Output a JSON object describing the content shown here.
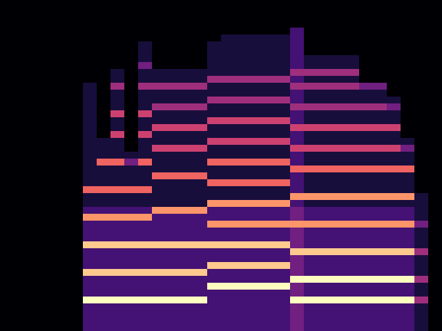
{
  "chart_data": {
    "type": "heatmap",
    "xlim": [
      -0.5,
      31.5
    ],
    "ylim": [
      47.5,
      -0.5
    ],
    "zlim": [
      0,
      9
    ],
    "tick_labels": false,
    "grid": false,
    "cells": [
      [
        0,
        0,
        0,
        0,
        0,
        0,
        0,
        0,
        0,
        0,
        0,
        0,
        0,
        0,
        0,
        0,
        0,
        0,
        0,
        0,
        0,
        0,
        0,
        0,
        0,
        0,
        0,
        0,
        0,
        0,
        0,
        0
      ],
      [
        0,
        0,
        0,
        0,
        0,
        0,
        0,
        0,
        0,
        0,
        0,
        0,
        0,
        0,
        0,
        0,
        0,
        0,
        0,
        0,
        0,
        0,
        0,
        0,
        0,
        0,
        0,
        0,
        0,
        0,
        0,
        0
      ],
      [
        0,
        0,
        0,
        0,
        0,
        0,
        0,
        0,
        0,
        0,
        0,
        0,
        0,
        0,
        0,
        0,
        0,
        0,
        0,
        0,
        0,
        0,
        0,
        0,
        0,
        0,
        0,
        0,
        0,
        0,
        0,
        0
      ],
      [
        0,
        0,
        0,
        0,
        0,
        0,
        0,
        0,
        0,
        0,
        0,
        0,
        0,
        0,
        0,
        0,
        0,
        0,
        0,
        0,
        0,
        0,
        0,
        0,
        0,
        0,
        0,
        0,
        0,
        0,
        0,
        0
      ],
      [
        0,
        0,
        0,
        0,
        0,
        0,
        0,
        0,
        0,
        0,
        0,
        0,
        0,
        0,
        0,
        0,
        0,
        0,
        0,
        0,
        0,
        2,
        0,
        0,
        0,
        0,
        0,
        0,
        0,
        0,
        0,
        0
      ],
      [
        0,
        0,
        0,
        0,
        0,
        0,
        0,
        0,
        0,
        0,
        0,
        0,
        0,
        0,
        0,
        0,
        1,
        1,
        1,
        1,
        1,
        2,
        0,
        0,
        0,
        0,
        0,
        0,
        0,
        0,
        0,
        0
      ],
      [
        0,
        0,
        0,
        0,
        0,
        0,
        0,
        0,
        0,
        0,
        1,
        0,
        0,
        0,
        0,
        1,
        1,
        1,
        1,
        1,
        1,
        2,
        0,
        0,
        0,
        0,
        0,
        0,
        0,
        0,
        0,
        0
      ],
      [
        0,
        0,
        0,
        0,
        0,
        0,
        0,
        0,
        0,
        0,
        1,
        0,
        0,
        0,
        0,
        1,
        1,
        1,
        1,
        1,
        1,
        2,
        0,
        0,
        0,
        0,
        0,
        0,
        0,
        0,
        0,
        0
      ],
      [
        0,
        0,
        0,
        0,
        0,
        0,
        0,
        0,
        0,
        0,
        1,
        0,
        0,
        0,
        0,
        1,
        1,
        1,
        1,
        1,
        1,
        2,
        1,
        1,
        1,
        1,
        0,
        0,
        0,
        0,
        0,
        0
      ],
      [
        0,
        0,
        0,
        0,
        0,
        0,
        0,
        0,
        0,
        0,
        3,
        0,
        0,
        0,
        0,
        1,
        1,
        1,
        1,
        1,
        1,
        2,
        1,
        1,
        1,
        1,
        0,
        0,
        0,
        0,
        0,
        0
      ],
      [
        0,
        0,
        0,
        0,
        0,
        0,
        0,
        0,
        1,
        0,
        1,
        1,
        1,
        1,
        1,
        1,
        1,
        1,
        1,
        1,
        1,
        4,
        4,
        4,
        4,
        4,
        0,
        0,
        0,
        0,
        0,
        0
      ],
      [
        0,
        0,
        0,
        0,
        0,
        0,
        0,
        0,
        1,
        0,
        1,
        1,
        1,
        1,
        1,
        4,
        4,
        4,
        4,
        4,
        4,
        2,
        1,
        1,
        1,
        1,
        0,
        0,
        0,
        0,
        0,
        0
      ],
      [
        0,
        0,
        0,
        0,
        0,
        0,
        1,
        0,
        4,
        0,
        4,
        4,
        4,
        4,
        4,
        1,
        1,
        1,
        1,
        1,
        1,
        4,
        4,
        4,
        4,
        4,
        3,
        3,
        0,
        0,
        0,
        0
      ],
      [
        0,
        0,
        0,
        0,
        0,
        0,
        1,
        0,
        1,
        0,
        1,
        1,
        1,
        1,
        1,
        1,
        1,
        1,
        1,
        1,
        1,
        2,
        1,
        1,
        1,
        1,
        1,
        1,
        0,
        0,
        0,
        0
      ],
      [
        0,
        0,
        0,
        0,
        0,
        0,
        1,
        0,
        1,
        0,
        1,
        1,
        1,
        1,
        1,
        4,
        4,
        4,
        4,
        4,
        4,
        2,
        1,
        1,
        1,
        1,
        1,
        1,
        1,
        0,
        0,
        0
      ],
      [
        0,
        0,
        0,
        0,
        0,
        0,
        1,
        0,
        1,
        0,
        1,
        4,
        4,
        4,
        4,
        1,
        1,
        1,
        1,
        1,
        1,
        4,
        4,
        4,
        4,
        4,
        4,
        4,
        3,
        0,
        0,
        0
      ],
      [
        0,
        0,
        0,
        0,
        0,
        0,
        1,
        0,
        5,
        0,
        5,
        1,
        1,
        1,
        1,
        1,
        1,
        1,
        1,
        1,
        1,
        2,
        1,
        1,
        1,
        1,
        1,
        1,
        1,
        0,
        0,
        0
      ],
      [
        0,
        0,
        0,
        0,
        0,
        0,
        1,
        0,
        1,
        0,
        1,
        1,
        1,
        1,
        1,
        5,
        5,
        5,
        5,
        5,
        5,
        2,
        1,
        1,
        1,
        1,
        1,
        1,
        1,
        0,
        0,
        0
      ],
      [
        0,
        0,
        0,
        0,
        0,
        0,
        1,
        0,
        1,
        0,
        1,
        5,
        5,
        5,
        5,
        1,
        1,
        1,
        1,
        1,
        1,
        5,
        5,
        5,
        5,
        5,
        5,
        5,
        5,
        0,
        0,
        0
      ],
      [
        0,
        0,
        0,
        0,
        0,
        0,
        1,
        0,
        5,
        0,
        5,
        1,
        1,
        1,
        1,
        1,
        1,
        1,
        1,
        1,
        1,
        2,
        1,
        1,
        1,
        1,
        1,
        1,
        1,
        0,
        0,
        0
      ],
      [
        0,
        0,
        0,
        0,
        0,
        0,
        1,
        1,
        1,
        0,
        1,
        1,
        1,
        1,
        1,
        5,
        5,
        5,
        5,
        5,
        5,
        2,
        1,
        1,
        1,
        1,
        1,
        1,
        1,
        1,
        0,
        0
      ],
      [
        0,
        0,
        0,
        0,
        0,
        0,
        1,
        1,
        1,
        0,
        1,
        5,
        5,
        5,
        5,
        1,
        1,
        1,
        1,
        1,
        1,
        5,
        5,
        5,
        5,
        5,
        5,
        5,
        5,
        3,
        0,
        0
      ],
      [
        0,
        0,
        0,
        0,
        0,
        0,
        1,
        1,
        1,
        1,
        1,
        1,
        1,
        1,
        1,
        1,
        1,
        1,
        1,
        1,
        1,
        2,
        1,
        1,
        1,
        1,
        1,
        1,
        1,
        1,
        0,
        0
      ],
      [
        0,
        0,
        0,
        0,
        0,
        0,
        1,
        6,
        6,
        3,
        6,
        1,
        1,
        1,
        1,
        6,
        6,
        6,
        6,
        6,
        6,
        2,
        1,
        1,
        1,
        1,
        1,
        1,
        1,
        1,
        0,
        0
      ],
      [
        0,
        0,
        0,
        0,
        0,
        0,
        1,
        1,
        1,
        1,
        1,
        1,
        1,
        1,
        1,
        1,
        1,
        1,
        1,
        1,
        1,
        6,
        6,
        6,
        6,
        6,
        6,
        6,
        6,
        6,
        0,
        0
      ],
      [
        0,
        0,
        0,
        0,
        0,
        0,
        1,
        1,
        1,
        1,
        1,
        6,
        6,
        6,
        6,
        1,
        1,
        1,
        1,
        1,
        1,
        2,
        1,
        1,
        1,
        1,
        1,
        1,
        1,
        1,
        0,
        0
      ],
      [
        0,
        0,
        0,
        0,
        0,
        0,
        1,
        1,
        1,
        1,
        1,
        1,
        1,
        1,
        1,
        6,
        6,
        6,
        6,
        6,
        6,
        2,
        1,
        1,
        1,
        1,
        1,
        1,
        1,
        1,
        0,
        0
      ],
      [
        0,
        0,
        0,
        0,
        0,
        0,
        6,
        6,
        6,
        6,
        6,
        1,
        1,
        1,
        1,
        1,
        1,
        1,
        1,
        1,
        1,
        2,
        1,
        1,
        1,
        1,
        1,
        1,
        1,
        1,
        0,
        0
      ],
      [
        0,
        0,
        0,
        0,
        0,
        0,
        1,
        1,
        1,
        1,
        1,
        1,
        1,
        1,
        1,
        1,
        1,
        1,
        1,
        1,
        1,
        7,
        7,
        7,
        7,
        7,
        7,
        7,
        7,
        7,
        1,
        0
      ],
      [
        0,
        0,
        0,
        0,
        0,
        0,
        1,
        1,
        1,
        1,
        1,
        1,
        1,
        1,
        1,
        7,
        7,
        7,
        7,
        7,
        7,
        2,
        1,
        1,
        1,
        1,
        1,
        1,
        1,
        1,
        1,
        0
      ],
      [
        0,
        0,
        0,
        0,
        0,
        0,
        2,
        2,
        2,
        2,
        2,
        7,
        7,
        7,
        7,
        2,
        2,
        2,
        2,
        2,
        2,
        3,
        2,
        2,
        2,
        2,
        2,
        2,
        2,
        2,
        1,
        0
      ],
      [
        0,
        0,
        0,
        0,
        0,
        0,
        7,
        7,
        7,
        7,
        7,
        2,
        2,
        2,
        2,
        2,
        2,
        2,
        2,
        2,
        2,
        3,
        2,
        2,
        2,
        2,
        2,
        2,
        2,
        2,
        1,
        0
      ],
      [
        0,
        0,
        0,
        0,
        0,
        0,
        2,
        2,
        2,
        2,
        2,
        2,
        2,
        2,
        2,
        7,
        7,
        7,
        7,
        7,
        7,
        7,
        7,
        7,
        7,
        7,
        7,
        7,
        7,
        7,
        3,
        0
      ],
      [
        0,
        0,
        0,
        0,
        0,
        0,
        2,
        2,
        2,
        2,
        2,
        2,
        2,
        2,
        2,
        2,
        2,
        2,
        2,
        2,
        2,
        3,
        2,
        2,
        2,
        2,
        2,
        2,
        2,
        2,
        1,
        0
      ],
      [
        0,
        0,
        0,
        0,
        0,
        0,
        2,
        2,
        2,
        2,
        2,
        2,
        2,
        2,
        2,
        2,
        2,
        2,
        2,
        2,
        2,
        3,
        2,
        2,
        2,
        2,
        2,
        2,
        2,
        2,
        1,
        0
      ],
      [
        0,
        0,
        0,
        0,
        0,
        0,
        8,
        8,
        8,
        8,
        8,
        8,
        8,
        8,
        8,
        8,
        8,
        8,
        8,
        8,
        8,
        3,
        2,
        2,
        2,
        2,
        2,
        2,
        2,
        2,
        1,
        0
      ],
      [
        0,
        0,
        0,
        0,
        0,
        0,
        2,
        2,
        2,
        2,
        2,
        2,
        2,
        2,
        2,
        2,
        2,
        2,
        2,
        2,
        2,
        8,
        8,
        8,
        8,
        8,
        8,
        8,
        8,
        8,
        4,
        0
      ],
      [
        0,
        0,
        0,
        0,
        0,
        0,
        2,
        2,
        2,
        2,
        2,
        2,
        2,
        2,
        2,
        2,
        2,
        2,
        2,
        2,
        2,
        3,
        2,
        2,
        2,
        2,
        2,
        2,
        2,
        2,
        1,
        0
      ],
      [
        0,
        0,
        0,
        0,
        0,
        0,
        2,
        2,
        2,
        2,
        2,
        2,
        2,
        2,
        2,
        8,
        8,
        8,
        8,
        8,
        8,
        3,
        2,
        2,
        2,
        2,
        2,
        2,
        2,
        2,
        1,
        0
      ],
      [
        0,
        0,
        0,
        0,
        0,
        0,
        8,
        8,
        8,
        8,
        8,
        8,
        8,
        8,
        8,
        2,
        2,
        2,
        2,
        2,
        2,
        3,
        2,
        2,
        2,
        2,
        2,
        2,
        2,
        2,
        1,
        0
      ],
      [
        0,
        0,
        0,
        0,
        0,
        0,
        2,
        2,
        2,
        2,
        2,
        2,
        2,
        2,
        2,
        2,
        2,
        2,
        2,
        2,
        2,
        9,
        9,
        9,
        9,
        9,
        9,
        9,
        9,
        9,
        4,
        0
      ],
      [
        0,
        0,
        0,
        0,
        0,
        0,
        2,
        2,
        2,
        2,
        2,
        2,
        2,
        2,
        2,
        9,
        9,
        9,
        9,
        9,
        9,
        3,
        2,
        2,
        2,
        2,
        2,
        2,
        2,
        2,
        1,
        0
      ],
      [
        0,
        0,
        0,
        0,
        0,
        0,
        2,
        2,
        2,
        2,
        2,
        2,
        2,
        2,
        2,
        2,
        2,
        2,
        2,
        2,
        2,
        3,
        2,
        2,
        2,
        2,
        2,
        2,
        2,
        2,
        1,
        0
      ],
      [
        0,
        0,
        0,
        0,
        0,
        0,
        9,
        9,
        9,
        9,
        9,
        9,
        9,
        9,
        9,
        2,
        2,
        2,
        2,
        2,
        2,
        9,
        9,
        9,
        9,
        9,
        9,
        9,
        9,
        9,
        4,
        0
      ],
      [
        0,
        0,
        0,
        0,
        0,
        0,
        2,
        2,
        2,
        2,
        2,
        2,
        2,
        2,
        2,
        2,
        2,
        2,
        2,
        2,
        2,
        3,
        2,
        2,
        2,
        2,
        2,
        2,
        2,
        2,
        1,
        0
      ],
      [
        0,
        0,
        0,
        0,
        0,
        0,
        2,
        2,
        2,
        2,
        2,
        2,
        2,
        2,
        2,
        2,
        2,
        2,
        2,
        2,
        2,
        3,
        2,
        2,
        2,
        2,
        2,
        2,
        2,
        2,
        1,
        0
      ],
      [
        0,
        0,
        0,
        0,
        0,
        0,
        2,
        2,
        2,
        2,
        2,
        2,
        2,
        2,
        2,
        2,
        2,
        2,
        2,
        2,
        2,
        3,
        2,
        2,
        2,
        2,
        2,
        2,
        2,
        2,
        1,
        0
      ],
      [
        0,
        0,
        0,
        0,
        0,
        0,
        2,
        2,
        2,
        2,
        2,
        2,
        2,
        2,
        2,
        2,
        2,
        2,
        2,
        2,
        2,
        3,
        2,
        2,
        2,
        2,
        2,
        2,
        2,
        2,
        1,
        0
      ]
    ]
  }
}
